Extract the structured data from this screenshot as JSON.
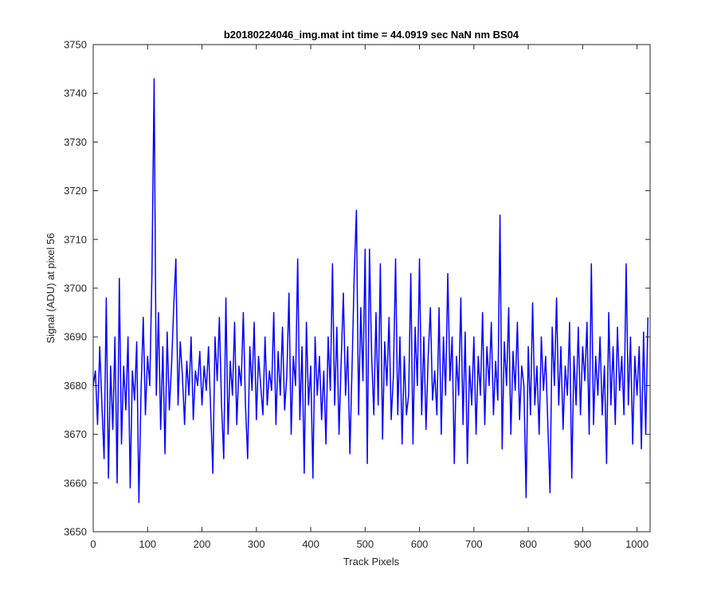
{
  "chart_data": {
    "type": "line",
    "title": "b20180224046_img.mat int time = 44.0919 sec  NaN nm BS04",
    "xlabel": "Track Pixels",
    "ylabel": "Signal (ADU) at pixel 56",
    "xlim": [
      0,
      1024
    ],
    "ylim": [
      3650,
      3750
    ],
    "xticks": [
      0,
      100,
      200,
      300,
      400,
      500,
      600,
      700,
      800,
      900,
      1000
    ],
    "yticks": [
      3650,
      3660,
      3670,
      3680,
      3690,
      3700,
      3710,
      3720,
      3730,
      3740,
      3750
    ],
    "grid": false,
    "legend": "none",
    "series": [
      {
        "color": "#0000ff",
        "points": [
          [
            0,
            3680
          ],
          [
            4,
            3683
          ],
          [
            8,
            3672
          ],
          [
            12,
            3688
          ],
          [
            16,
            3676
          ],
          [
            20,
            3665
          ],
          [
            24,
            3698
          ],
          [
            28,
            3661
          ],
          [
            32,
            3684
          ],
          [
            36,
            3671
          ],
          [
            40,
            3690
          ],
          [
            44,
            3660
          ],
          [
            48,
            3702
          ],
          [
            52,
            3668
          ],
          [
            56,
            3684
          ],
          [
            60,
            3675
          ],
          [
            64,
            3690
          ],
          [
            68,
            3659
          ],
          [
            72,
            3683
          ],
          [
            76,
            3677
          ],
          [
            80,
            3689
          ],
          [
            84,
            3656
          ],
          [
            88,
            3679
          ],
          [
            92,
            3694
          ],
          [
            96,
            3674
          ],
          [
            100,
            3686
          ],
          [
            104,
            3680
          ],
          [
            108,
            3703
          ],
          [
            112,
            3743
          ],
          [
            116,
            3678
          ],
          [
            120,
            3695
          ],
          [
            124,
            3671
          ],
          [
            128,
            3688
          ],
          [
            132,
            3666
          ],
          [
            136,
            3691
          ],
          [
            140,
            3675
          ],
          [
            144,
            3684
          ],
          [
            148,
            3696
          ],
          [
            152,
            3706
          ],
          [
            156,
            3676
          ],
          [
            160,
            3689
          ],
          [
            164,
            3682
          ],
          [
            168,
            3672
          ],
          [
            172,
            3685
          ],
          [
            176,
            3678
          ],
          [
            180,
            3690
          ],
          [
            184,
            3673
          ],
          [
            188,
            3683
          ],
          [
            192,
            3680
          ],
          [
            196,
            3687
          ],
          [
            200,
            3676
          ],
          [
            204,
            3684
          ],
          [
            208,
            3679
          ],
          [
            212,
            3688
          ],
          [
            216,
            3675
          ],
          [
            220,
            3662
          ],
          [
            224,
            3690
          ],
          [
            228,
            3681
          ],
          [
            232,
            3694
          ],
          [
            236,
            3676
          ],
          [
            240,
            3665
          ],
          [
            244,
            3698
          ],
          [
            248,
            3670
          ],
          [
            252,
            3685
          ],
          [
            256,
            3678
          ],
          [
            260,
            3693
          ],
          [
            264,
            3672
          ],
          [
            268,
            3684
          ],
          [
            272,
            3680
          ],
          [
            276,
            3695
          ],
          [
            280,
            3676
          ],
          [
            284,
            3665
          ],
          [
            288,
            3688
          ],
          [
            292,
            3679
          ],
          [
            296,
            3693
          ],
          [
            300,
            3673
          ],
          [
            304,
            3686
          ],
          [
            308,
            3680
          ],
          [
            312,
            3674
          ],
          [
            316,
            3690
          ],
          [
            320,
            3676
          ],
          [
            324,
            3683
          ],
          [
            328,
            3679
          ],
          [
            332,
            3695
          ],
          [
            336,
            3672
          ],
          [
            340,
            3687
          ],
          [
            344,
            3678
          ],
          [
            348,
            3692
          ],
          [
            352,
            3675
          ],
          [
            356,
            3682
          ],
          [
            360,
            3699
          ],
          [
            364,
            3670
          ],
          [
            368,
            3686
          ],
          [
            372,
            3680
          ],
          [
            376,
            3706
          ],
          [
            380,
            3673
          ],
          [
            384,
            3688
          ],
          [
            388,
            3662
          ],
          [
            392,
            3693
          ],
          [
            396,
            3676
          ],
          [
            400,
            3684
          ],
          [
            404,
            3661
          ],
          [
            408,
            3690
          ],
          [
            412,
            3678
          ],
          [
            416,
            3686
          ],
          [
            420,
            3673
          ],
          [
            424,
            3683
          ],
          [
            428,
            3668
          ],
          [
            432,
            3690
          ],
          [
            436,
            3679
          ],
          [
            440,
            3705
          ],
          [
            444,
            3676
          ],
          [
            448,
            3692
          ],
          [
            452,
            3670
          ],
          [
            456,
            3685
          ],
          [
            460,
            3699
          ],
          [
            464,
            3678
          ],
          [
            468,
            3688
          ],
          [
            472,
            3666
          ],
          [
            476,
            3684
          ],
          [
            480,
            3703
          ],
          [
            484,
            3716
          ],
          [
            488,
            3674
          ],
          [
            492,
            3696
          ],
          [
            496,
            3681
          ],
          [
            500,
            3708
          ],
          [
            504,
            3664
          ],
          [
            508,
            3708
          ],
          [
            512,
            3686
          ],
          [
            516,
            3674
          ],
          [
            520,
            3695
          ],
          [
            524,
            3676
          ],
          [
            528,
            3705
          ],
          [
            532,
            3669
          ],
          [
            536,
            3689
          ],
          [
            540,
            3680
          ],
          [
            544,
            3694
          ],
          [
            548,
            3673
          ],
          [
            552,
            3682
          ],
          [
            556,
            3706
          ],
          [
            560,
            3674
          ],
          [
            564,
            3690
          ],
          [
            568,
            3668
          ],
          [
            572,
            3686
          ],
          [
            576,
            3674
          ],
          [
            580,
            3678
          ],
          [
            584,
            3703
          ],
          [
            588,
            3668
          ],
          [
            592,
            3692
          ],
          [
            596,
            3680
          ],
          [
            600,
            3706
          ],
          [
            604,
            3674
          ],
          [
            608,
            3690
          ],
          [
            612,
            3671
          ],
          [
            616,
            3686
          ],
          [
            620,
            3696
          ],
          [
            624,
            3677
          ],
          [
            628,
            3683
          ],
          [
            632,
            3674
          ],
          [
            636,
            3696
          ],
          [
            640,
            3670
          ],
          [
            644,
            3690
          ],
          [
            648,
            3678
          ],
          [
            652,
            3703
          ],
          [
            656,
            3681
          ],
          [
            660,
            3690
          ],
          [
            664,
            3664
          ],
          [
            668,
            3686
          ],
          [
            672,
            3678
          ],
          [
            676,
            3698
          ],
          [
            680,
            3672
          ],
          [
            684,
            3691
          ],
          [
            688,
            3664
          ],
          [
            692,
            3684
          ],
          [
            696,
            3676
          ],
          [
            700,
            3690
          ],
          [
            704,
            3670
          ],
          [
            708,
            3686
          ],
          [
            712,
            3678
          ],
          [
            716,
            3695
          ],
          [
            720,
            3672
          ],
          [
            724,
            3688
          ],
          [
            728,
            3680
          ],
          [
            732,
            3693
          ],
          [
            736,
            3674
          ],
          [
            740,
            3685
          ],
          [
            744,
            3677
          ],
          [
            748,
            3715
          ],
          [
            752,
            3667
          ],
          [
            756,
            3689
          ],
          [
            760,
            3680
          ],
          [
            764,
            3696
          ],
          [
            768,
            3670
          ],
          [
            772,
            3687
          ],
          [
            776,
            3679
          ],
          [
            780,
            3693
          ],
          [
            784,
            3673
          ],
          [
            788,
            3684
          ],
          [
            792,
            3680
          ],
          [
            796,
            3657
          ],
          [
            800,
            3688
          ],
          [
            804,
            3674
          ],
          [
            808,
            3697
          ],
          [
            812,
            3676
          ],
          [
            816,
            3684
          ],
          [
            820,
            3670
          ],
          [
            824,
            3690
          ],
          [
            828,
            3679
          ],
          [
            832,
            3686
          ],
          [
            836,
            3672
          ],
          [
            840,
            3658
          ],
          [
            844,
            3692
          ],
          [
            848,
            3680
          ],
          [
            852,
            3698
          ],
          [
            856,
            3676
          ],
          [
            860,
            3688
          ],
          [
            864,
            3671
          ],
          [
            868,
            3684
          ],
          [
            872,
            3678
          ],
          [
            876,
            3693
          ],
          [
            880,
            3661
          ],
          [
            884,
            3686
          ],
          [
            888,
            3676
          ],
          [
            892,
            3692
          ],
          [
            896,
            3674
          ],
          [
            900,
            3688
          ],
          [
            904,
            3681
          ],
          [
            908,
            3693
          ],
          [
            912,
            3670
          ],
          [
            916,
            3705
          ],
          [
            920,
            3672
          ],
          [
            924,
            3686
          ],
          [
            928,
            3678
          ],
          [
            932,
            3690
          ],
          [
            936,
            3674
          ],
          [
            940,
            3684
          ],
          [
            944,
            3664
          ],
          [
            948,
            3695
          ],
          [
            952,
            3676
          ],
          [
            956,
            3688
          ],
          [
            960,
            3672
          ],
          [
            964,
            3692
          ],
          [
            968,
            3679
          ],
          [
            972,
            3686
          ],
          [
            976,
            3674
          ],
          [
            980,
            3705
          ],
          [
            984,
            3676
          ],
          [
            988,
            3690
          ],
          [
            992,
            3668
          ],
          [
            996,
            3686
          ],
          [
            1000,
            3678
          ],
          [
            1004,
            3688
          ],
          [
            1008,
            3667
          ],
          [
            1012,
            3691
          ],
          [
            1016,
            3670
          ],
          [
            1020,
            3694
          ]
        ]
      }
    ]
  }
}
